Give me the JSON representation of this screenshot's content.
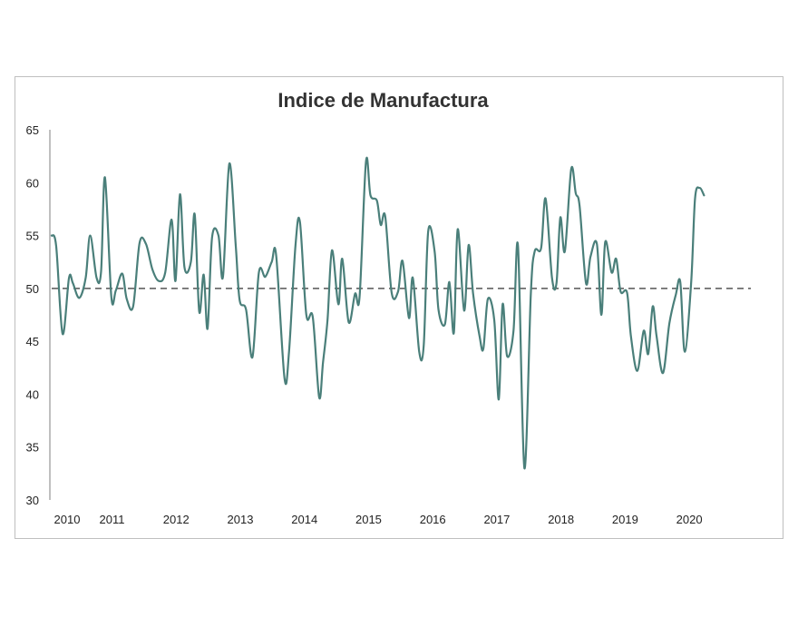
{
  "chart_data": {
    "type": "line",
    "title": "Indice de Manufactura",
    "xlabel": "",
    "ylabel": "",
    "ylim": [
      30,
      65
    ],
    "yticks": [
      30,
      35,
      40,
      45,
      50,
      55,
      60,
      65
    ],
    "xlim": [
      2010.0,
      2020.9
    ],
    "xticks": [
      {
        "label": "2010",
        "x": 2010.0
      },
      {
        "label": "2011",
        "x": 2010.7
      },
      {
        "label": "2012",
        "x": 2011.7
      },
      {
        "label": "2013",
        "x": 2012.7
      },
      {
        "label": "2014",
        "x": 2013.7
      },
      {
        "label": "2015",
        "x": 2014.7
      },
      {
        "label": "2016",
        "x": 2015.7
      },
      {
        "label": "2017",
        "x": 2016.7
      },
      {
        "label": "2018",
        "x": 2017.7
      },
      {
        "label": "2019",
        "x": 2018.7
      },
      {
        "label": "2020",
        "x": 2019.7
      }
    ],
    "reference_line": {
      "y": 50,
      "style": "dashed"
    },
    "grid": false,
    "legend": "none",
    "colors": {
      "line": "#4a7f7a",
      "reference": "#555555",
      "axis": "#7f7f7f"
    },
    "series": [
      {
        "values": [
          [
            2010.0,
            55.0
          ],
          [
            2010.07,
            54.0
          ],
          [
            2010.17,
            45.7
          ],
          [
            2010.27,
            51.0
          ],
          [
            2010.33,
            50.5
          ],
          [
            2010.43,
            49.1
          ],
          [
            2010.53,
            51.0
          ],
          [
            2010.6,
            55.0
          ],
          [
            2010.7,
            51.0
          ],
          [
            2010.77,
            51.6
          ],
          [
            2010.83,
            60.5
          ],
          [
            2010.93,
            49.2
          ],
          [
            2011.0,
            49.8
          ],
          [
            2011.1,
            51.4
          ],
          [
            2011.17,
            49.0
          ],
          [
            2011.27,
            48.3
          ],
          [
            2011.37,
            54.3
          ],
          [
            2011.47,
            54.2
          ],
          [
            2011.57,
            51.8
          ],
          [
            2011.67,
            50.7
          ],
          [
            2011.77,
            51.5
          ],
          [
            2011.87,
            56.5
          ],
          [
            2011.93,
            50.7
          ],
          [
            2012.0,
            58.9
          ],
          [
            2012.07,
            52.0
          ],
          [
            2012.17,
            52.5
          ],
          [
            2012.23,
            57.0
          ],
          [
            2012.3,
            47.8
          ],
          [
            2012.37,
            51.3
          ],
          [
            2012.43,
            46.2
          ],
          [
            2012.5,
            54.8
          ],
          [
            2012.6,
            55.0
          ],
          [
            2012.67,
            51.1
          ],
          [
            2012.77,
            61.8
          ],
          [
            2012.87,
            54.0
          ],
          [
            2012.93,
            48.9
          ],
          [
            2013.03,
            48.0
          ],
          [
            2013.13,
            43.5
          ],
          [
            2013.23,
            51.5
          ],
          [
            2013.33,
            51.1
          ],
          [
            2013.43,
            52.5
          ],
          [
            2013.5,
            53.1
          ],
          [
            2013.63,
            41.5
          ],
          [
            2013.7,
            44.0
          ],
          [
            2013.8,
            54.0
          ],
          [
            2013.87,
            56.3
          ],
          [
            2013.97,
            47.5
          ],
          [
            2014.07,
            47.3
          ],
          [
            2014.17,
            39.7
          ],
          [
            2014.23,
            43.0
          ],
          [
            2014.3,
            47.0
          ],
          [
            2014.37,
            53.6
          ],
          [
            2014.47,
            48.5
          ],
          [
            2014.53,
            52.8
          ],
          [
            2014.63,
            46.8
          ],
          [
            2014.73,
            49.5
          ],
          [
            2014.8,
            49.2
          ],
          [
            2014.9,
            62.0
          ],
          [
            2014.97,
            58.8
          ],
          [
            2015.07,
            58.3
          ],
          [
            2015.13,
            56.0
          ],
          [
            2015.2,
            56.8
          ],
          [
            2015.3,
            49.6
          ],
          [
            2015.4,
            49.7
          ],
          [
            2015.47,
            52.6
          ],
          [
            2015.57,
            47.2
          ],
          [
            2015.63,
            51.0
          ],
          [
            2015.73,
            44.0
          ],
          [
            2015.8,
            44.6
          ],
          [
            2015.87,
            55.4
          ],
          [
            2015.97,
            53.5
          ],
          [
            2016.03,
            48.0
          ],
          [
            2016.13,
            46.6
          ],
          [
            2016.2,
            50.6
          ],
          [
            2016.27,
            45.8
          ],
          [
            2016.33,
            55.6
          ],
          [
            2016.43,
            47.9
          ],
          [
            2016.5,
            54.1
          ],
          [
            2016.57,
            49.5
          ],
          [
            2016.67,
            45.5
          ],
          [
            2016.73,
            44.3
          ],
          [
            2016.8,
            49.0
          ],
          [
            2016.9,
            47.0
          ],
          [
            2016.97,
            39.5
          ],
          [
            2017.03,
            48.5
          ],
          [
            2017.1,
            43.6
          ],
          [
            2017.2,
            46.0
          ],
          [
            2017.27,
            54.0
          ],
          [
            2017.37,
            33.0
          ],
          [
            2017.47,
            49.5
          ],
          [
            2017.53,
            53.5
          ],
          [
            2017.63,
            53.8
          ],
          [
            2017.7,
            58.5
          ],
          [
            2017.8,
            51.0
          ],
          [
            2017.87,
            50.5
          ],
          [
            2017.93,
            56.7
          ],
          [
            2018.0,
            53.5
          ],
          [
            2018.1,
            61.3
          ],
          [
            2018.17,
            59.0
          ],
          [
            2018.23,
            57.8
          ],
          [
            2018.33,
            50.5
          ],
          [
            2018.4,
            53.0
          ],
          [
            2018.5,
            54.2
          ],
          [
            2018.57,
            47.5
          ],
          [
            2018.63,
            54.4
          ],
          [
            2018.73,
            51.5
          ],
          [
            2018.8,
            52.8
          ],
          [
            2018.87,
            49.7
          ],
          [
            2018.97,
            49.6
          ],
          [
            2019.03,
            45.5
          ],
          [
            2019.13,
            42.2
          ],
          [
            2019.23,
            46.0
          ],
          [
            2019.3,
            43.8
          ],
          [
            2019.37,
            48.3
          ],
          [
            2019.43,
            45.5
          ],
          [
            2019.53,
            42.0
          ],
          [
            2019.63,
            46.7
          ],
          [
            2019.73,
            49.4
          ],
          [
            2019.8,
            50.6
          ],
          [
            2019.87,
            44.0
          ],
          [
            2019.97,
            50.6
          ],
          [
            2020.03,
            58.5
          ],
          [
            2020.1,
            59.5
          ],
          [
            2020.17,
            58.8
          ]
        ]
      }
    ]
  }
}
